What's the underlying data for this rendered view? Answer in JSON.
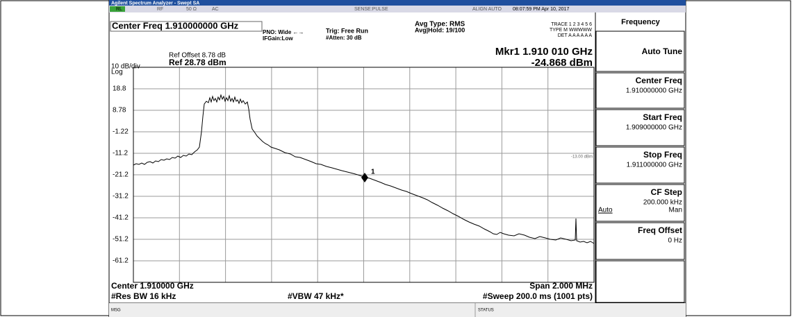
{
  "title_bar": "Agilent Spectrum Analyzer - Swept SA",
  "status_bar": {
    "rl": "RL",
    "rf": "RF",
    "impedance": "50 Ω",
    "coupling": "AC",
    "sense": "SENSE:PULSE",
    "align": "ALIGN AUTO",
    "datetime": "08:07:59 PM Apr 10, 2017"
  },
  "header": {
    "center_freq": "Center Freq 1.910000000 GHz",
    "pno": "PNO: Wide ←→",
    "ifgain": "IFGain:Low",
    "trig": "Trig: Free Run",
    "atten": "#Atten: 30 dB",
    "avg_type": "Avg Type: RMS",
    "avg_hold": "Avg|Hold: 19/100",
    "trace": "TRACE 1 2 3 4 5 6",
    "type": "TYPE M WWWWW",
    "det": "DET A A A A A A",
    "ref_offset": "Ref Offset 8.78 dB",
    "ref": "Ref 28.78 dBm",
    "scale": "10 dB/div",
    "log": "Log"
  },
  "marker": {
    "freq": "Mkr1 1.910 010 GHz",
    "level": "-24.868 dBm",
    "label": "1"
  },
  "display_line": "-13.00 dBm",
  "y_labels": [
    "18.8",
    "8.78",
    "-1.22",
    "-11.2",
    "-21.2",
    "-31.2",
    "-41.2",
    "-51.2",
    "-61.2"
  ],
  "footer": {
    "center": "Center 1.910000 GHz",
    "span": "Span 2.000 MHz",
    "rbw": "#Res BW 16 kHz",
    "vbw": "#VBW 47 kHz*",
    "sweep": "#Sweep 200.0 ms (1001 pts)",
    "msg": "MSG",
    "status": "STATUS"
  },
  "softkeys": {
    "menu": "Frequency",
    "keys": [
      {
        "label": "Auto Tune"
      },
      {
        "label": "Center Freq",
        "value": "1.910000000 GHz"
      },
      {
        "label": "Start Freq",
        "value": "1.909000000 GHz"
      },
      {
        "label": "Stop Freq",
        "value": "1.911000000 GHz"
      },
      {
        "label": "CF Step",
        "value": "200.000 kHz",
        "left": "Auto",
        "right": "Man"
      },
      {
        "label": "Freq Offset",
        "value": "0 Hz"
      }
    ]
  }
}
